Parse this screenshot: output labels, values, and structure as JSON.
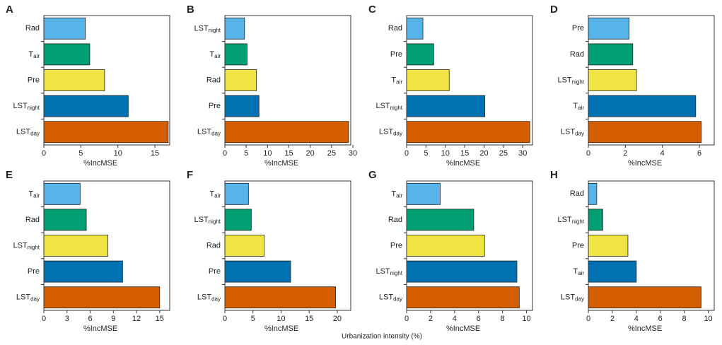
{
  "caption": "Urbanization intensity (%)",
  "chart_data": [
    {
      "type": "barh",
      "letter": "A",
      "xlabel": "%IncMSE",
      "categories": [
        "Rad",
        {
          "text": "T",
          "sub": "air"
        },
        "Pre",
        {
          "text": "LST",
          "sub": "night"
        },
        {
          "text": "LST",
          "sub": "day"
        }
      ],
      "values": [
        5.6,
        6.2,
        8.2,
        11.4,
        16.8
      ],
      "colors": [
        "#56b4e9",
        "#009e73",
        "#f0e442",
        "#0072b2",
        "#d55e00"
      ],
      "xlim": [
        0,
        17
      ],
      "xticks": [
        0,
        5,
        10,
        15
      ]
    },
    {
      "type": "barh",
      "letter": "B",
      "xlabel": "%IncMSE",
      "categories": [
        {
          "text": "LST",
          "sub": "night"
        },
        {
          "text": "T",
          "sub": "air"
        },
        "Rad",
        "Pre",
        {
          "text": "LST",
          "sub": "day"
        }
      ],
      "values": [
        4.6,
        5.2,
        7.4,
        8.0,
        29.0
      ],
      "colors": [
        "#56b4e9",
        "#009e73",
        "#f0e442",
        "#0072b2",
        "#d55e00"
      ],
      "xlim": [
        0,
        29.5
      ],
      "xticks": [
        0,
        5,
        10,
        15,
        20,
        25,
        30
      ]
    },
    {
      "type": "barh",
      "letter": "C",
      "xlabel": "%IncMSE",
      "categories": [
        "Rad",
        "Pre",
        {
          "text": "T",
          "sub": "air"
        },
        {
          "text": "LST",
          "sub": "night"
        },
        {
          "text": "LST",
          "sub": "day"
        }
      ],
      "values": [
        4.2,
        7.0,
        11.0,
        20.2,
        31.8
      ],
      "colors": [
        "#56b4e9",
        "#009e73",
        "#f0e442",
        "#0072b2",
        "#d55e00"
      ],
      "xlim": [
        0,
        32.5
      ],
      "xticks": [
        0,
        5,
        10,
        15,
        20,
        25,
        30
      ]
    },
    {
      "type": "barh",
      "letter": "D",
      "xlabel": "%IncMSE",
      "categories": [
        "Pre",
        "Rad",
        {
          "text": "LST",
          "sub": "night"
        },
        {
          "text": "T",
          "sub": "air"
        },
        {
          "text": "LST",
          "sub": "day"
        }
      ],
      "values": [
        2.2,
        2.4,
        2.6,
        5.8,
        6.1
      ],
      "colors": [
        "#56b4e9",
        "#009e73",
        "#f0e442",
        "#0072b2",
        "#d55e00"
      ],
      "xlim": [
        0,
        6.8
      ],
      "xticks": [
        0,
        2,
        4,
        6
      ]
    },
    {
      "type": "barh",
      "letter": "E",
      "xlabel": "%IncMSE",
      "categories": [
        {
          "text": "T",
          "sub": "air"
        },
        "Rad",
        {
          "text": "LST",
          "sub": "night"
        },
        "Pre",
        {
          "text": "LST",
          "sub": "day"
        }
      ],
      "values": [
        4.7,
        5.5,
        8.3,
        10.2,
        15.0
      ],
      "colors": [
        "#56b4e9",
        "#009e73",
        "#f0e442",
        "#0072b2",
        "#d55e00"
      ],
      "xlim": [
        0,
        16.3
      ],
      "xticks": [
        0,
        3,
        6,
        9,
        12,
        15
      ]
    },
    {
      "type": "barh",
      "letter": "F",
      "xlabel": "%IncMSE",
      "categories": [
        {
          "text": "T",
          "sub": "air"
        },
        {
          "text": "LST",
          "sub": "night"
        },
        "Rad",
        "Pre",
        {
          "text": "LST",
          "sub": "day"
        }
      ],
      "values": [
        4.2,
        4.7,
        7.0,
        11.7,
        19.7
      ],
      "colors": [
        "#56b4e9",
        "#009e73",
        "#f0e442",
        "#0072b2",
        "#d55e00"
      ],
      "xlim": [
        0,
        22.4
      ],
      "xticks": [
        0,
        5,
        10,
        15,
        20
      ]
    },
    {
      "type": "barh",
      "letter": "G",
      "xlabel": "%IncMSE",
      "categories": [
        {
          "text": "T",
          "sub": "air"
        },
        "Rad",
        "Pre",
        {
          "text": "LST",
          "sub": "night"
        },
        {
          "text": "LST",
          "sub": "day"
        }
      ],
      "values": [
        2.8,
        5.6,
        6.5,
        9.2,
        9.4
      ],
      "colors": [
        "#56b4e9",
        "#009e73",
        "#f0e442",
        "#0072b2",
        "#d55e00"
      ],
      "xlim": [
        0,
        10.5
      ],
      "xticks": [
        0,
        2,
        4,
        6,
        8,
        10
      ]
    },
    {
      "type": "barh",
      "letter": "H",
      "xlabel": "%IncMSE",
      "categories": [
        "Rad",
        {
          "text": "LST",
          "sub": "night"
        },
        "Pre",
        {
          "text": "T",
          "sub": "air"
        },
        {
          "text": "LST",
          "sub": "day"
        }
      ],
      "values": [
        0.7,
        1.2,
        3.3,
        4.0,
        9.4
      ],
      "colors": [
        "#56b4e9",
        "#009e73",
        "#f0e442",
        "#0072b2",
        "#d55e00"
      ],
      "xlim": [
        0,
        10.5
      ],
      "xticks": [
        0,
        2,
        4,
        6,
        8,
        10
      ]
    }
  ]
}
